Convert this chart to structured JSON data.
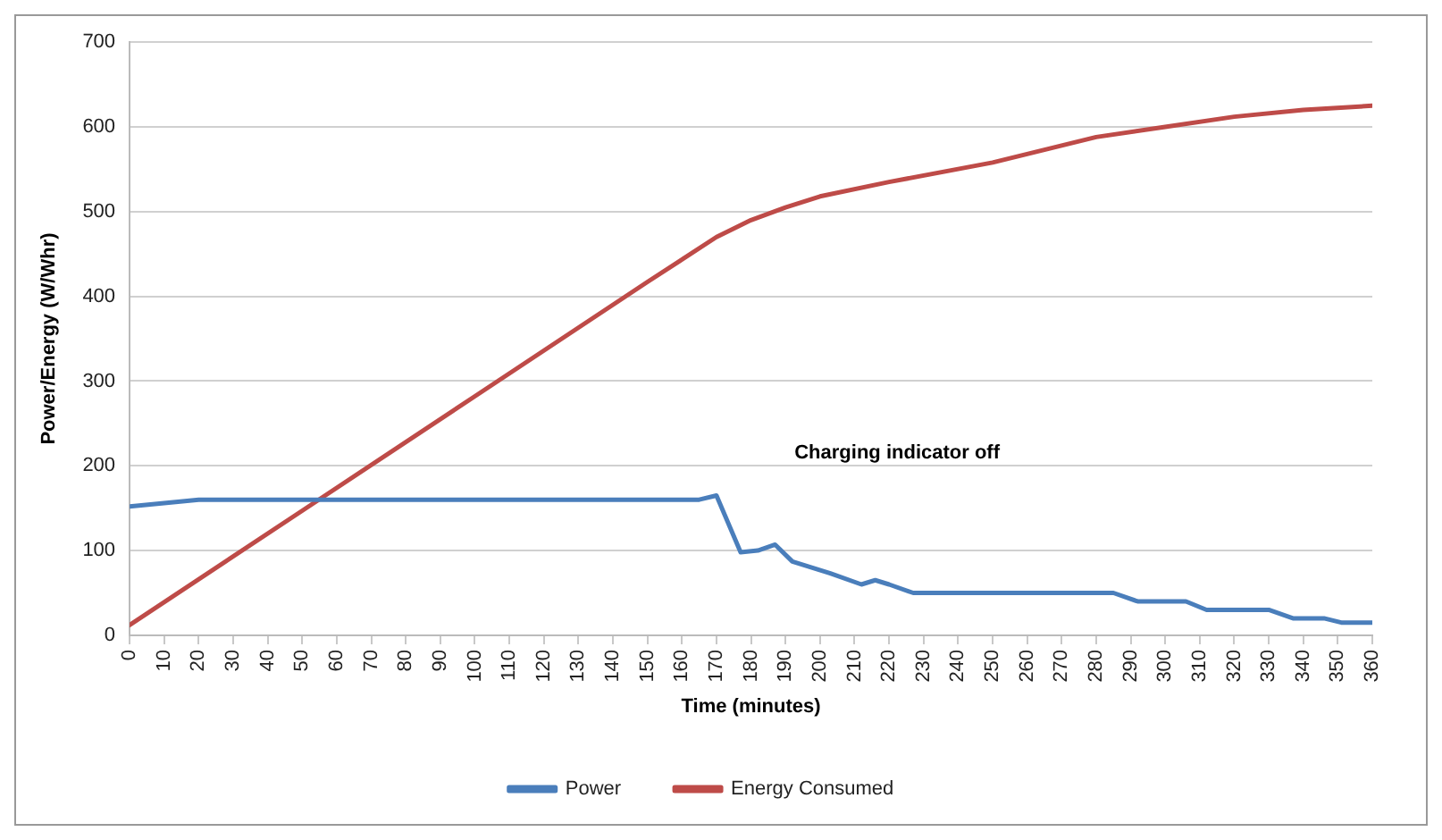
{
  "chart_data": {
    "type": "line",
    "xlabel": "Time (minutes)",
    "ylabel": "Power/Energy (W/Whr)",
    "annotations": [
      "Charging indicator off"
    ],
    "series": [
      {
        "name": "Power",
        "color": "#4a7ebb",
        "x": [
          0,
          20,
          60,
          100,
          140,
          165,
          170,
          177,
          182,
          187,
          192,
          203,
          212,
          216,
          220,
          227,
          285,
          292,
          306,
          312,
          330,
          337,
          346,
          351,
          360
        ],
        "values": [
          152,
          160,
          160,
          160,
          160,
          160,
          165,
          98,
          100,
          107,
          87,
          73,
          60,
          65,
          60,
          50,
          50,
          40,
          40,
          30,
          30,
          20,
          20,
          15,
          15
        ]
      },
      {
        "name": "Energy Consumed",
        "color": "#be4b48",
        "x": [
          0,
          50,
          100,
          150,
          170,
          180,
          190,
          200,
          220,
          250,
          280,
          300,
          320,
          340,
          360
        ],
        "values": [
          12,
          147,
          282,
          417,
          470,
          490,
          505,
          518,
          535,
          558,
          588,
          600,
          612,
          620,
          625
        ]
      }
    ],
    "xlim": [
      0,
      360
    ],
    "xticks": [
      0,
      10,
      20,
      30,
      40,
      50,
      60,
      70,
      80,
      90,
      100,
      110,
      120,
      130,
      140,
      150,
      160,
      170,
      180,
      190,
      200,
      210,
      220,
      230,
      240,
      250,
      260,
      270,
      280,
      290,
      300,
      310,
      320,
      330,
      340,
      350,
      360
    ],
    "ylim": [
      0,
      700
    ],
    "yticks": [
      0,
      100,
      200,
      300,
      400,
      500,
      600,
      700
    ],
    "grid": "y",
    "legend": "bottom",
    "marker": "none",
    "line_style": "solid"
  }
}
